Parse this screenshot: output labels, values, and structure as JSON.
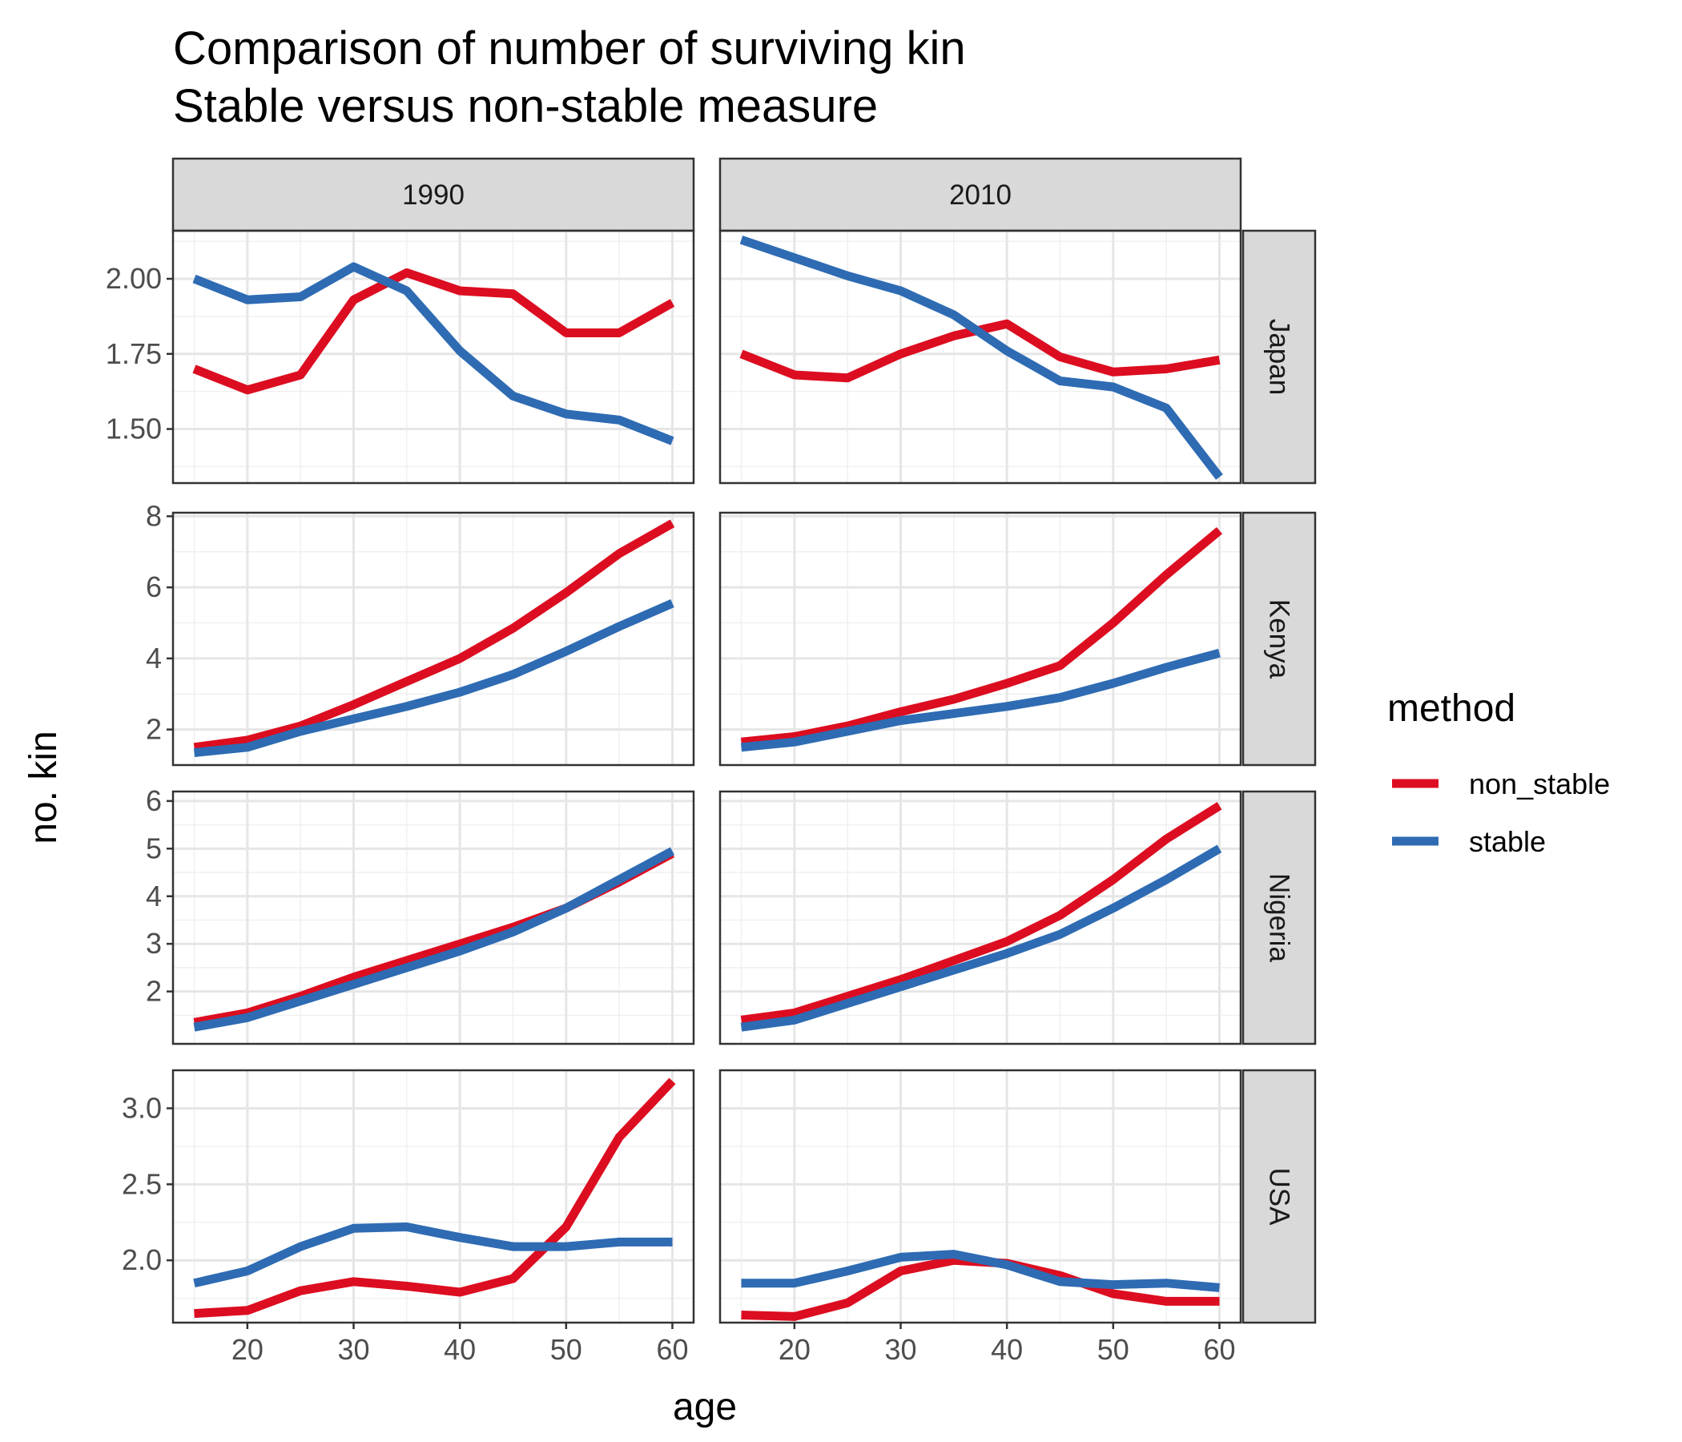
{
  "chart_data": {
    "type": "line",
    "title": "Comparison of number of surviving kin",
    "subtitle": "Stable versus non-stable measure",
    "xlabel": "age",
    "ylabel": "no. kin",
    "x": [
      15,
      20,
      25,
      30,
      35,
      40,
      45,
      50,
      55,
      60
    ],
    "xlim": [
      13,
      62
    ],
    "x_ticks": [
      20,
      30,
      40,
      50,
      60
    ],
    "column_facets": [
      "1990",
      "2010"
    ],
    "row_facets": [
      "Japan",
      "Kenya",
      "Nigeria",
      "USA"
    ],
    "legend": {
      "title": "method",
      "position": "right",
      "entries": [
        {
          "name": "non_stable",
          "color": "#dc0d20"
        },
        {
          "name": "stable",
          "color": "#2e6bb3"
        }
      ]
    },
    "grid": true,
    "panels": [
      {
        "row": "Japan",
        "col": "1990",
        "ylim": [
          1.32,
          2.16
        ],
        "y_ticks": [
          1.5,
          1.75,
          2.0
        ],
        "y_tick_labels": [
          "1.50",
          "1.75",
          "2.00"
        ],
        "series": [
          {
            "name": "non_stable",
            "values": [
              1.7,
              1.63,
              1.68,
              1.93,
              2.02,
              1.96,
              1.95,
              1.82,
              1.82,
              1.92
            ]
          },
          {
            "name": "stable",
            "values": [
              2.0,
              1.93,
              1.94,
              2.04,
              1.96,
              1.76,
              1.61,
              1.55,
              1.53,
              1.46
            ]
          }
        ]
      },
      {
        "row": "Japan",
        "col": "2010",
        "ylim": [
          1.32,
          2.16
        ],
        "y_ticks": [
          1.5,
          1.75,
          2.0
        ],
        "y_tick_labels": [
          "1.50",
          "1.75",
          "2.00"
        ],
        "series": [
          {
            "name": "non_stable",
            "values": [
              1.75,
              1.68,
              1.67,
              1.75,
              1.81,
              1.85,
              1.74,
              1.69,
              1.7,
              1.73
            ]
          },
          {
            "name": "stable",
            "values": [
              2.13,
              2.07,
              2.01,
              1.96,
              1.88,
              1.76,
              1.66,
              1.64,
              1.57,
              1.34
            ]
          }
        ]
      },
      {
        "row": "Kenya",
        "col": "1990",
        "ylim": [
          1.0,
          8.1
        ],
        "y_ticks": [
          2,
          4,
          6,
          8
        ],
        "y_tick_labels": [
          "2",
          "4",
          "6",
          "8"
        ],
        "series": [
          {
            "name": "non_stable",
            "values": [
              1.5,
              1.7,
              2.1,
              2.7,
              3.35,
              4.0,
              4.85,
              5.85,
              6.95,
              7.8
            ]
          },
          {
            "name": "stable",
            "values": [
              1.35,
              1.5,
              1.95,
              2.3,
              2.65,
              3.05,
              3.55,
              4.2,
              4.9,
              5.55
            ]
          }
        ]
      },
      {
        "row": "Kenya",
        "col": "2010",
        "ylim": [
          1.0,
          8.1
        ],
        "y_ticks": [
          2,
          4,
          6,
          8
        ],
        "y_tick_labels": [
          "2",
          "4",
          "6",
          "8"
        ],
        "series": [
          {
            "name": "non_stable",
            "values": [
              1.65,
              1.8,
              2.1,
              2.5,
              2.85,
              3.3,
              3.8,
              5.0,
              6.35,
              7.6
            ]
          },
          {
            "name": "stable",
            "values": [
              1.5,
              1.65,
              1.95,
              2.25,
              2.45,
              2.65,
              2.9,
              3.3,
              3.75,
              4.15
            ]
          }
        ]
      },
      {
        "row": "Nigeria",
        "col": "1990",
        "ylim": [
          0.9,
          6.2
        ],
        "y_ticks": [
          2,
          3,
          4,
          5,
          6
        ],
        "y_tick_labels": [
          "2",
          "3",
          "4",
          "5",
          "6"
        ],
        "series": [
          {
            "name": "non_stable",
            "values": [
              1.35,
              1.55,
              1.9,
              2.3,
              2.65,
              3.0,
              3.35,
              3.75,
              4.3,
              4.9
            ]
          },
          {
            "name": "stable",
            "values": [
              1.25,
              1.45,
              1.8,
              2.15,
              2.5,
              2.85,
              3.25,
              3.75,
              4.35,
              4.95
            ]
          }
        ]
      },
      {
        "row": "Nigeria",
        "col": "2010",
        "ylim": [
          0.9,
          6.2
        ],
        "y_ticks": [
          2,
          3,
          4,
          5,
          6
        ],
        "y_tick_labels": [
          "2",
          "3",
          "4",
          "5",
          "6"
        ],
        "series": [
          {
            "name": "non_stable",
            "values": [
              1.4,
              1.55,
              1.9,
              2.25,
              2.65,
              3.05,
              3.6,
              4.35,
              5.2,
              5.9
            ]
          },
          {
            "name": "stable",
            "values": [
              1.25,
              1.4,
              1.75,
              2.1,
              2.45,
              2.8,
              3.2,
              3.75,
              4.35,
              5.0
            ]
          }
        ]
      },
      {
        "row": "USA",
        "col": "2010",
        "ylim": [
          1.59,
          3.25
        ],
        "y_ticks": [
          2.0,
          2.5,
          3.0
        ],
        "y_tick_labels": [
          "2.0",
          "2.5",
          "3.0"
        ],
        "series": [
          {
            "name": "non_stable",
            "values": [
              1.64,
              1.63,
              1.72,
              1.93,
              2.0,
              1.98,
              1.9,
              1.78,
              1.73,
              1.73
            ]
          },
          {
            "name": "stable",
            "values": [
              1.85,
              1.85,
              1.93,
              2.02,
              2.04,
              1.97,
              1.86,
              1.84,
              1.85,
              1.82
            ]
          }
        ]
      },
      {
        "row": "USA",
        "col": "1990",
        "ylim": [
          1.59,
          3.25
        ],
        "y_ticks": [
          2.0,
          2.5,
          3.0
        ],
        "y_tick_labels": [
          "2.0",
          "2.5",
          "3.0"
        ],
        "series": [
          {
            "name": "non_stable",
            "values": [
              1.65,
              1.67,
              1.8,
              1.86,
              1.83,
              1.79,
              1.88,
              2.22,
              2.81,
              3.18
            ]
          },
          {
            "name": "stable",
            "values": [
              1.85,
              1.93,
              2.09,
              2.21,
              2.22,
              2.15,
              2.09,
              2.09,
              2.12,
              2.12
            ]
          }
        ]
      }
    ]
  }
}
